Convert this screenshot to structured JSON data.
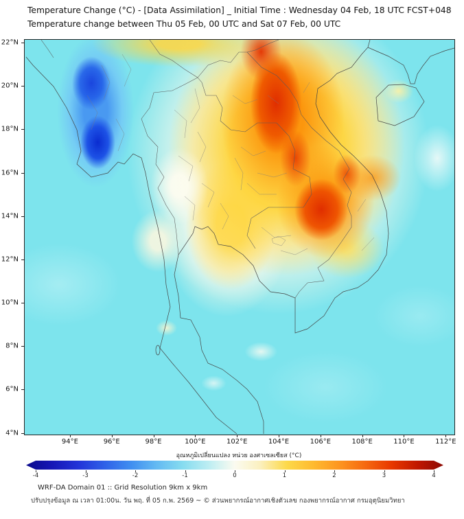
{
  "header": {
    "title_line1": "Temperature Change (°C) - [Data Assimilation] _ Initial Time : Wednesday 04 Feb, 18 UTC FCST+048",
    "title_line2": "Temperature change between Thu 05 Feb, 00 UTC and Sat 07 Feb, 00 UTC"
  },
  "map": {
    "x_ticks": [
      "94°E",
      "96°E",
      "98°E",
      "100°E",
      "102°E",
      "104°E",
      "106°E",
      "108°E",
      "110°E",
      "112°E"
    ],
    "y_ticks": [
      "22°N",
      "20°N",
      "18°N",
      "16°N",
      "14°N",
      "12°N",
      "10°N",
      "8°N",
      "6°N",
      "4°N"
    ],
    "lon_min": 91.8,
    "lon_span": 20.65,
    "lat_max": 22.16,
    "lat_span": 18.27
  },
  "colorbar": {
    "label": "อุณหภูมิเปลี่ยนแปลง หน่วย องศาเซลเซียส (°C)",
    "min": -4,
    "max": 4,
    "units": "°C",
    "ticks": [
      "-4",
      "-3",
      "-2",
      "-1",
      "0",
      "1",
      "2",
      "3",
      "4"
    ],
    "stops": [
      {
        "p": 0,
        "c": "#0a0a8c"
      },
      {
        "p": 6,
        "c": "#1616b4"
      },
      {
        "p": 12.5,
        "c": "#2233d8"
      },
      {
        "p": 19,
        "c": "#2f62e8"
      },
      {
        "p": 25,
        "c": "#3f8df0"
      },
      {
        "p": 31,
        "c": "#62b8f2"
      },
      {
        "p": 37.5,
        "c": "#86dcf0"
      },
      {
        "p": 44,
        "c": "#bfeef2"
      },
      {
        "p": 50,
        "c": "#fbfbf0"
      },
      {
        "p": 56,
        "c": "#fbf0c0"
      },
      {
        "p": 62.5,
        "c": "#fdd94a"
      },
      {
        "p": 69,
        "c": "#feb92f"
      },
      {
        "p": 75,
        "c": "#fd9620"
      },
      {
        "p": 81,
        "c": "#f66b10"
      },
      {
        "p": 87.5,
        "c": "#e83800"
      },
      {
        "p": 94,
        "c": "#bf1600"
      },
      {
        "p": 100,
        "c": "#8c0a04"
      }
    ]
  },
  "footer": {
    "line1": "WRF-DA Domain 01 :: Grid Resolution 9km x 9km",
    "line2": "ปรับปรุงข้อมูล ณ เวลา 01:00น. วัน พฤ. ที่ 05 ก.พ. 2569 ~ © ส่วนพยากรณ์อากาศเชิงตัวเลข กองพยากรณ์อากาศ กรมอุตุนิยมวิทยา"
  },
  "chart_data": {
    "type": "heatmap",
    "title": "Temperature Change (°C) - [Data Assimilation]",
    "initial_time": "Wednesday 04 Feb, 18 UTC",
    "forecast_hour": "FCST+048",
    "period": "Thu 05 Feb, 00 UTC to Sat 07 Feb, 00 UTC",
    "x_range_deg_east": [
      92,
      112.5
    ],
    "y_range_deg_north": [
      4,
      22.2
    ],
    "value_range_c": [
      -4,
      4
    ],
    "colorbar_label": "อุณหภูมิเปลี่ยนแปลง หน่วย องศาเซลเซียส (°C)",
    "legend_position": "bottom",
    "grid": false,
    "features": [
      {
        "region": "Central Myanmar (94.5–96.5°E, 16–21°N)",
        "value_c": -3.5,
        "description": "strong cooling core (deep blue)"
      },
      {
        "region": "Northern Laos / NW Vietnam (102.5–106°E, 16–22°N)",
        "value_c": 3.5,
        "description": "strong warming core (red)"
      },
      {
        "region": "Southern Laos / central Vietnam (105–107.5°E, 13–15.5°N)",
        "value_c": 3.0,
        "description": "secondary warming core (red-orange)"
      },
      {
        "region": "Northeast Thailand / Cambodia (101–105°E, 12–17°N)",
        "value_c": 1.5,
        "description": "moderate warming (yellow)"
      },
      {
        "region": "Central-west Thailand (98–101°E, 13–17°N)",
        "value_c": 0.2,
        "description": "near-zero change (white/cream)"
      },
      {
        "region": "Gulf of Thailand, Andaman Sea, South China Sea and far south",
        "value_c": -0.7,
        "description": "background slight cooling (cyan)"
      },
      {
        "region": "NE corner near Hainan (109–110°E, 19–20°N)",
        "value_c": 0.8,
        "description": "small pale-yellow patch"
      }
    ]
  }
}
